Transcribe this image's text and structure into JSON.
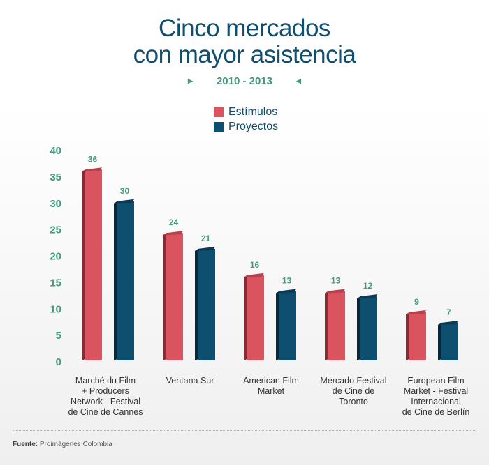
{
  "header": {
    "title_line1": "Cinco mercados",
    "title_line2": "con mayor asistencia",
    "period": "2010 - 2013"
  },
  "footer": {
    "source_label": "Fuente:",
    "source_text": "Proimágenes Colombia"
  },
  "chart_data": {
    "type": "bar",
    "title": "Cinco mercados con mayor asistencia",
    "subtitle": "2010 - 2013",
    "categories": [
      [
        "Marché du Film",
        "+ Producers",
        "Network - Festival",
        "de Cine de Cannes"
      ],
      [
        "Ventana Sur"
      ],
      [
        "American Film",
        "Market"
      ],
      [
        "Mercado Festival",
        "de Cine de",
        "Toronto"
      ],
      [
        "European Film",
        "Market - Festival",
        "Internacional",
        "de Cine de Berlín"
      ]
    ],
    "series": [
      {
        "name": "Estímulos",
        "values": [
          36,
          24,
          16,
          13,
          9
        ],
        "color": "#d9545f",
        "side_color": "#8a2a33",
        "top_color": "#b93f4a"
      },
      {
        "name": "Proyectos",
        "values": [
          30,
          21,
          13,
          12,
          7
        ],
        "color": "#0e4e6f",
        "side_color": "#062a3d",
        "top_color": "#0a3a54"
      }
    ],
    "ylim": [
      0,
      40
    ],
    "yticks": [
      0,
      5,
      10,
      15,
      20,
      25,
      30,
      35,
      40
    ],
    "xlabel": "",
    "ylabel": "",
    "grid": false,
    "legend_position": "top-center"
  }
}
